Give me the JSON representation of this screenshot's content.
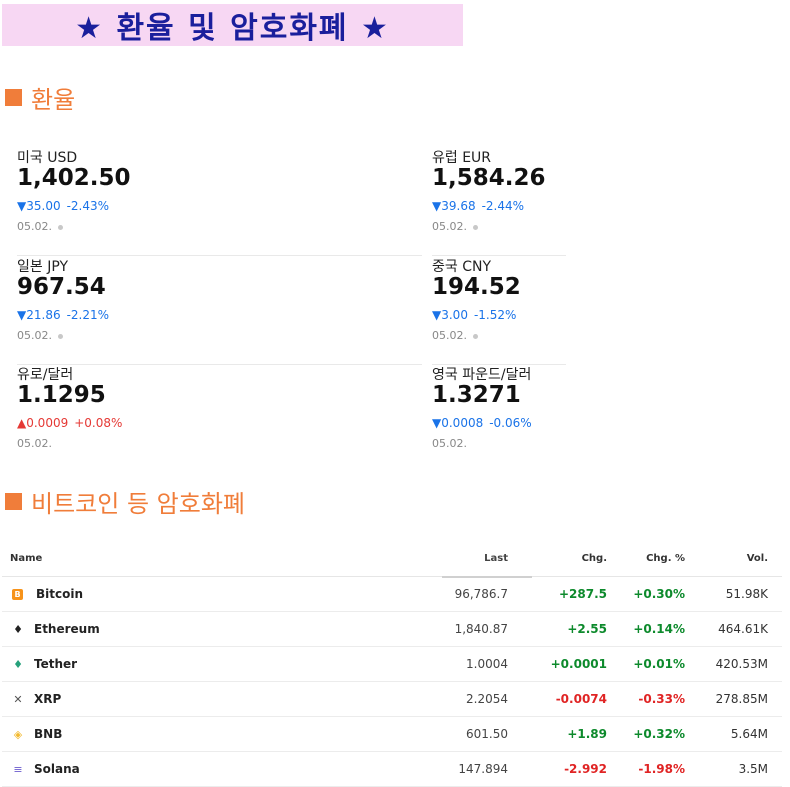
{
  "banner": {
    "title": "★  환율  및  암호화폐 ★"
  },
  "fx_section": {
    "title": "환율"
  },
  "fx_cards": [
    {
      "label": "미국 USD",
      "value": "1,402.50",
      "direction": "down",
      "change": "▼35.00",
      "percent": "-2.43%",
      "date": "05.02."
    },
    {
      "label": "유럽 EUR",
      "value": "1,584.26",
      "direction": "down",
      "change": "▼39.68",
      "percent": "-2.44%",
      "date": "05.02."
    },
    {
      "label": "일본 JPY",
      "value": "967.54",
      "direction": "down",
      "change": "▼21.86",
      "percent": "-2.21%",
      "date": "05.02."
    },
    {
      "label": "중국 CNY",
      "value": "194.52",
      "direction": "down",
      "change": "▼3.00",
      "percent": "-1.52%",
      "date": "05.02."
    },
    {
      "label": "유로/달러",
      "value": "1.1295",
      "direction": "up",
      "change": "▲0.0009",
      "percent": "+0.08%",
      "date": "05.02."
    },
    {
      "label": "영국 파운드/달러",
      "value": "1.3271",
      "direction": "down",
      "change": "▼0.0008",
      "percent": "-0.06%",
      "date": "05.02."
    }
  ],
  "crypto_section": {
    "title": "비트코인 등 암호화폐"
  },
  "crypto_table": {
    "headers": {
      "name": "Name",
      "last": "Last",
      "chg": "Chg.",
      "pct": "Chg. %",
      "vol": "Vol."
    },
    "rows": [
      {
        "icon": "bitcoin-icon",
        "icon_glyph": "B",
        "icon_color": "#f7931a",
        "name": "Bitcoin",
        "last": "96,786.7",
        "chg": "+287.5",
        "pct": "+0.30%",
        "vol": "51.98K",
        "trend": "pos"
      },
      {
        "icon": "ethereum-icon",
        "icon_glyph": "♦",
        "icon_color": "#222222",
        "name": "Ethereum",
        "last": "1,840.87",
        "chg": "+2.55",
        "pct": "+0.14%",
        "vol": "464.61K",
        "trend": "pos"
      },
      {
        "icon": "tether-icon",
        "icon_glyph": "♦",
        "icon_color": "#26a17b",
        "name": "Tether",
        "last": "1.0004",
        "chg": "+0.0001",
        "pct": "+0.01%",
        "vol": "420.53M",
        "trend": "pos"
      },
      {
        "icon": "xrp-icon",
        "icon_glyph": "✕",
        "icon_color": "#555555",
        "name": "XRP",
        "last": "2.2054",
        "chg": "-0.0074",
        "pct": "-0.33%",
        "vol": "278.85M",
        "trend": "neg"
      },
      {
        "icon": "bnb-icon",
        "icon_glyph": "◈",
        "icon_color": "#f3ba2f",
        "name": "BNB",
        "last": "601.50",
        "chg": "+1.89",
        "pct": "+0.32%",
        "vol": "5.64M",
        "trend": "pos"
      },
      {
        "icon": "solana-icon",
        "icon_glyph": "≡",
        "icon_color": "#6a5acd",
        "name": "Solana",
        "last": "147.894",
        "chg": "-2.992",
        "pct": "-1.98%",
        "vol": "3.5M",
        "trend": "neg"
      }
    ]
  },
  "colors": {
    "accent": "#f07d3a",
    "banner_bg": "#f7d7f3",
    "banner_text": "#1a1f9c",
    "down": "#1a73e8",
    "up": "#e53935",
    "pos": "#0d8a2c",
    "neg": "#e02424"
  }
}
